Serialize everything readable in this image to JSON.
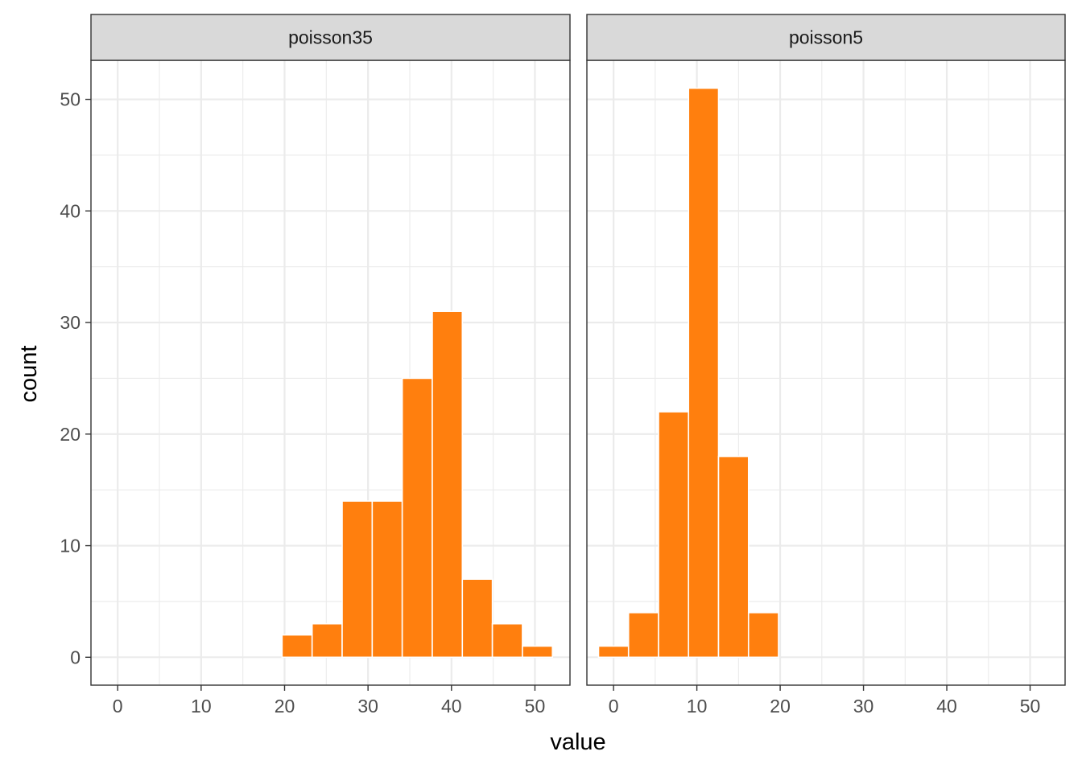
{
  "chart_data": {
    "type": "bar",
    "title": "",
    "xlabel": "value",
    "ylabel": "count",
    "xlim": [
      -3.2,
      54.2
    ],
    "ylim": [
      -2.5,
      53.5
    ],
    "x_ticks": [
      0,
      10,
      20,
      30,
      40,
      50
    ],
    "y_ticks": [
      0,
      10,
      20,
      30,
      40,
      50
    ],
    "bar_color": "#ff7f0e",
    "grid": true,
    "binwidth": 3.6,
    "panels": [
      {
        "name": "poisson35",
        "bins": [
          {
            "x": -0.9,
            "count": 0
          },
          {
            "x": 2.7,
            "count": 0
          },
          {
            "x": 6.3,
            "count": 0
          },
          {
            "x": 9.9,
            "count": 0
          },
          {
            "x": 13.5,
            "count": 0
          },
          {
            "x": 17.1,
            "count": 0
          },
          {
            "x": 21.5,
            "count": 2
          },
          {
            "x": 25.1,
            "count": 3
          },
          {
            "x": 28.7,
            "count": 14
          },
          {
            "x": 32.3,
            "count": 14
          },
          {
            "x": 35.9,
            "count": 25
          },
          {
            "x": 39.5,
            "count": 31
          },
          {
            "x": 43.1,
            "count": 7
          },
          {
            "x": 46.7,
            "count": 3
          },
          {
            "x": 50.3,
            "count": 1
          }
        ]
      },
      {
        "name": "poisson5",
        "bins": [
          {
            "x": 0.0,
            "count": 1
          },
          {
            "x": 3.6,
            "count": 4
          },
          {
            "x": 7.2,
            "count": 22
          },
          {
            "x": 10.8,
            "count": 51
          },
          {
            "x": 14.4,
            "count": 18
          },
          {
            "x": 18.0,
            "count": 4
          },
          {
            "x": 21.6,
            "count": 0
          },
          {
            "x": 25.2,
            "count": 0
          },
          {
            "x": 28.8,
            "count": 0
          },
          {
            "x": 32.4,
            "count": 0
          },
          {
            "x": 36.0,
            "count": 0
          },
          {
            "x": 39.6,
            "count": 0
          },
          {
            "x": 43.2,
            "count": 0
          },
          {
            "x": 46.8,
            "count": 0
          },
          {
            "x": 50.4,
            "count": 0
          }
        ]
      }
    ]
  }
}
